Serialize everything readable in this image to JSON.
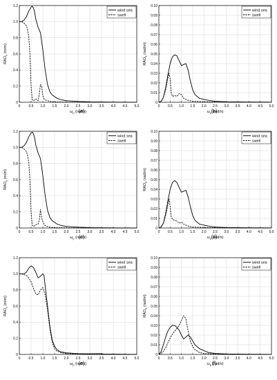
{
  "chart_data": [
    {
      "type": "line",
      "caption": "(a)",
      "xlabel": "ω",
      "xlabel_sub": "p",
      "xlabel_unit": " (rad/s)",
      "ylabel": "RAO",
      "ylabel_sub": "x",
      "ylabel_unit": " (m/m)",
      "xlim": [
        0,
        5
      ],
      "ylim": [
        0,
        1.2
      ],
      "xticks": [
        "0",
        "0.5",
        "1.0",
        "1.5",
        "2.0",
        "2.5",
        "3.0",
        "3.5",
        "4.0",
        "4.5",
        "5.0"
      ],
      "yticks": [
        "0",
        "0.2",
        "0.4",
        "0.6",
        "0.8",
        "1.0",
        "1.2"
      ],
      "grid": true,
      "legend": "top-right",
      "series": [
        {
          "name": "wind sea",
          "style": "solid",
          "x": [
            0,
            0.1,
            0.2,
            0.3,
            0.4,
            0.5,
            0.55,
            0.6,
            0.65,
            0.7,
            0.8,
            0.9,
            1.0,
            1.1,
            1.2,
            1.3,
            1.4,
            1.5,
            1.6,
            1.8,
            2.0,
            2.5,
            3.0,
            4.0,
            5.0
          ],
          "y": [
            1.0,
            1.0,
            1.02,
            1.06,
            1.13,
            1.18,
            1.19,
            1.17,
            1.12,
            1.03,
            0.93,
            0.86,
            0.65,
            0.4,
            0.22,
            0.13,
            0.09,
            0.07,
            0.05,
            0.03,
            0.02,
            0.01,
            0.005,
            0.002,
            0.001
          ]
        },
        {
          "name": "swell",
          "style": "dashed",
          "x": [
            0,
            0.1,
            0.2,
            0.3,
            0.35,
            0.4,
            0.45,
            0.5,
            0.55,
            0.6,
            0.7,
            0.8,
            0.85,
            0.9,
            0.95,
            1.0,
            1.05,
            1.1,
            1.2,
            1.3,
            1.5,
            2.0,
            3.0,
            5.0
          ],
          "y": [
            1.0,
            1.0,
            0.98,
            0.95,
            0.9,
            0.82,
            0.6,
            0.2,
            0.03,
            0.02,
            0.04,
            0.02,
            0.1,
            0.22,
            0.2,
            0.08,
            0.04,
            0.03,
            0.02,
            0.01,
            0.005,
            0.002,
            0.001,
            0.0
          ]
        }
      ]
    },
    {
      "type": "line",
      "caption": "(b)",
      "xlabel": "ω",
      "xlabel_sub": "p",
      "xlabel_unit": " (rad/s)",
      "ylabel": "RAO",
      "ylabel_sub": "θ",
      "ylabel_unit": " (rad/m)",
      "xlim": [
        0,
        5
      ],
      "ylim": [
        0,
        0.1
      ],
      "xticks": [
        "0",
        "0.5",
        "1.0",
        "1.5",
        "2.0",
        "2.5",
        "3.0",
        "3.5",
        "4.0",
        "4.5",
        "5.0"
      ],
      "yticks": [
        "0",
        "0.01",
        "0.02",
        "0.03",
        "0.04",
        "0.05",
        "0.06",
        "0.07",
        "0.08",
        "0.09",
        "0.10"
      ],
      "grid": true,
      "legend": "top-right",
      "series": [
        {
          "name": "wind sea",
          "style": "solid",
          "x": [
            0,
            0.1,
            0.2,
            0.3,
            0.4,
            0.5,
            0.6,
            0.7,
            0.8,
            0.9,
            1.0,
            1.1,
            1.2,
            1.3,
            1.4,
            1.5,
            1.6,
            1.8,
            2.0,
            2.2,
            2.5,
            3.0,
            4.0,
            5.0
          ],
          "y": [
            0,
            0.001,
            0.005,
            0.015,
            0.028,
            0.04,
            0.047,
            0.049,
            0.048,
            0.043,
            0.038,
            0.039,
            0.04,
            0.033,
            0.022,
            0.013,
            0.008,
            0.004,
            0.003,
            0.002,
            0.001,
            0.0005,
            0.0002,
            0.0001
          ]
        },
        {
          "name": "swell",
          "style": "dashed",
          "x": [
            0,
            0.1,
            0.2,
            0.3,
            0.4,
            0.45,
            0.5,
            0.55,
            0.6,
            0.7,
            0.8,
            0.9,
            1.0,
            1.1,
            1.2,
            1.3,
            1.5,
            2.0,
            3.0,
            5.0
          ],
          "y": [
            0,
            0.001,
            0.005,
            0.013,
            0.025,
            0.03,
            0.024,
            0.01,
            0.006,
            0.007,
            0.006,
            0.009,
            0.008,
            0.004,
            0.003,
            0.002,
            0.001,
            0.0005,
            0.0002,
            0.0001
          ]
        }
      ]
    },
    {
      "type": "line",
      "caption": "(c)",
      "xlabel": "ω",
      "xlabel_sub": "p",
      "xlabel_unit": " (rad/s)",
      "ylabel": "RAO",
      "ylabel_sub": "x",
      "ylabel_unit": " (m/m)",
      "xlim": [
        0,
        5
      ],
      "ylim": [
        0,
        1.2
      ],
      "xticks": [
        "0",
        "0.5",
        "1.0",
        "1.5",
        "2.0",
        "2.5",
        "3.0",
        "3.5",
        "4.0",
        "4.5",
        "5.0"
      ],
      "yticks": [
        "0",
        "0.2",
        "0.4",
        "0.6",
        "0.8",
        "1.0",
        "1.2"
      ],
      "grid": true,
      "legend": "top-right",
      "series": [
        {
          "name": "wind sea",
          "style": "solid",
          "x": [
            0,
            0.1,
            0.2,
            0.3,
            0.4,
            0.5,
            0.55,
            0.6,
            0.65,
            0.7,
            0.8,
            0.9,
            1.0,
            1.1,
            1.2,
            1.3,
            1.4,
            1.5,
            1.6,
            1.8,
            2.0,
            2.5,
            3.0,
            4.0,
            5.0
          ],
          "y": [
            1.0,
            1.0,
            1.02,
            1.06,
            1.13,
            1.18,
            1.19,
            1.17,
            1.12,
            1.03,
            0.93,
            0.86,
            0.65,
            0.4,
            0.22,
            0.13,
            0.09,
            0.07,
            0.05,
            0.03,
            0.02,
            0.01,
            0.005,
            0.002,
            0.001
          ]
        },
        {
          "name": "swell",
          "style": "dashed",
          "x": [
            0,
            0.1,
            0.2,
            0.3,
            0.35,
            0.4,
            0.45,
            0.5,
            0.55,
            0.6,
            0.7,
            0.8,
            0.85,
            0.9,
            0.95,
            1.0,
            1.05,
            1.1,
            1.2,
            1.3,
            1.5,
            2.0,
            3.0,
            5.0
          ],
          "y": [
            1.0,
            1.0,
            0.98,
            0.95,
            0.9,
            0.82,
            0.6,
            0.2,
            0.03,
            0.02,
            0.04,
            0.05,
            0.1,
            0.23,
            0.12,
            0.08,
            0.05,
            0.03,
            0.02,
            0.01,
            0.005,
            0.002,
            0.001,
            0.0
          ]
        }
      ]
    },
    {
      "type": "line",
      "caption": "(d)",
      "xlabel": "ω",
      "xlabel_sub": "p",
      "xlabel_unit": " (rad/s)",
      "ylabel": "RAO",
      "ylabel_sub": "θ",
      "ylabel_unit": " (rad/m)",
      "xlim": [
        0,
        5
      ],
      "ylim": [
        0,
        0.1
      ],
      "xticks": [
        "0",
        "0.5",
        "1.0",
        "1.5",
        "2.0",
        "2.5",
        "3.0",
        "3.5",
        "4.0",
        "4.5",
        "5.0"
      ],
      "yticks": [
        "0",
        "0.01",
        "0.02",
        "0.03",
        "0.04",
        "0.05",
        "0.06",
        "0.07",
        "0.08",
        "0.09",
        "0.10"
      ],
      "grid": true,
      "legend": "top-right",
      "series": [
        {
          "name": "wind sea",
          "style": "solid",
          "x": [
            0,
            0.1,
            0.2,
            0.3,
            0.4,
            0.5,
            0.6,
            0.7,
            0.8,
            0.9,
            1.0,
            1.1,
            1.2,
            1.3,
            1.4,
            1.5,
            1.6,
            1.8,
            2.0,
            2.2,
            2.5,
            3.0,
            4.0,
            5.0
          ],
          "y": [
            0,
            0.001,
            0.005,
            0.015,
            0.028,
            0.04,
            0.047,
            0.049,
            0.047,
            0.042,
            0.037,
            0.038,
            0.039,
            0.032,
            0.022,
            0.013,
            0.008,
            0.004,
            0.003,
            0.002,
            0.001,
            0.0005,
            0.0002,
            0.0001
          ]
        },
        {
          "name": "swell",
          "style": "dashed",
          "x": [
            0,
            0.1,
            0.2,
            0.3,
            0.4,
            0.45,
            0.5,
            0.55,
            0.6,
            0.7,
            0.8,
            0.9,
            1.0,
            1.1,
            1.2,
            1.3,
            1.5,
            2.0,
            3.0,
            5.0
          ],
          "y": [
            0,
            0.001,
            0.005,
            0.013,
            0.024,
            0.03,
            0.022,
            0.012,
            0.009,
            0.008,
            0.007,
            0.005,
            0.006,
            0.004,
            0.003,
            0.002,
            0.001,
            0.0005,
            0.0002,
            0.0001
          ]
        }
      ]
    },
    {
      "type": "line",
      "caption": "(e)",
      "xlabel": "ω",
      "xlabel_sub": "p",
      "xlabel_unit": " (rad/s)",
      "ylabel": "RAO",
      "ylabel_sub": "x",
      "ylabel_unit": " (m/m)",
      "xlim": [
        0,
        5
      ],
      "ylim": [
        0,
        1.2
      ],
      "xticks": [
        "0",
        "0.5",
        "1.0",
        "1.5",
        "2.0",
        "2.5",
        "3.0",
        "3.5",
        "4.0",
        "4.5",
        "5.0"
      ],
      "yticks": [
        "0",
        "0.2",
        "0.4",
        "0.6",
        "0.8",
        "1.0",
        "1.2"
      ],
      "grid": true,
      "legend": "top-right",
      "series": [
        {
          "name": "wind sea",
          "style": "solid",
          "x": [
            0,
            0.1,
            0.2,
            0.3,
            0.4,
            0.5,
            0.6,
            0.7,
            0.8,
            0.9,
            1.0,
            1.05,
            1.1,
            1.2,
            1.3,
            1.4,
            1.5,
            1.6,
            1.7,
            1.8,
            2.0,
            2.5,
            3.0,
            3.5,
            3.6,
            4.0,
            5.0
          ],
          "y": [
            1.0,
            1.0,
            1.0,
            1.02,
            1.07,
            1.1,
            1.08,
            1.02,
            0.95,
            0.97,
            1.0,
            0.98,
            0.85,
            0.6,
            0.35,
            0.18,
            0.1,
            0.06,
            0.04,
            0.03,
            0.02,
            0.01,
            0.008,
            0.01,
            0.005,
            0.003,
            0.001
          ]
        },
        {
          "name": "swell",
          "style": "dashed",
          "x": [
            0,
            0.1,
            0.2,
            0.3,
            0.4,
            0.5,
            0.6,
            0.7,
            0.8,
            0.9,
            1.0,
            1.1,
            1.2,
            1.3,
            1.4,
            1.5,
            1.6,
            1.8,
            2.0,
            2.5,
            3.0,
            4.0,
            5.0
          ],
          "y": [
            1.0,
            1.0,
            0.99,
            0.98,
            0.95,
            0.9,
            0.82,
            0.75,
            0.74,
            0.8,
            0.83,
            0.74,
            0.55,
            0.32,
            0.15,
            0.07,
            0.04,
            0.02,
            0.01,
            0.005,
            0.002,
            0.001,
            0.0
          ]
        }
      ]
    },
    {
      "type": "line",
      "caption": "(f)",
      "xlabel": "ω",
      "xlabel_sub": "p",
      "xlabel_unit": " (rad/s)",
      "ylabel": "RAO",
      "ylabel_sub": "θ",
      "ylabel_unit": " (rad/m)",
      "xlim": [
        0,
        5
      ],
      "ylim": [
        0,
        0.1
      ],
      "xticks": [
        "0",
        "0.5",
        "1.0",
        "1.5",
        "2.0",
        "2.5",
        "3.0",
        "3.5",
        "4.0",
        "4.5",
        "5.0"
      ],
      "yticks": [
        "0",
        "0.01",
        "0.02",
        "0.03",
        "0.04",
        "0.05",
        "0.06",
        "0.07",
        "0.08",
        "0.09",
        "0.10"
      ],
      "grid": true,
      "legend": "top-right",
      "series": [
        {
          "name": "wind sea",
          "style": "solid",
          "x": [
            0,
            0.1,
            0.2,
            0.3,
            0.4,
            0.5,
            0.6,
            0.7,
            0.8,
            0.9,
            1.0,
            1.1,
            1.2,
            1.3,
            1.4,
            1.5,
            1.6,
            1.8,
            2.0,
            2.2,
            2.5,
            3.0,
            4.0,
            5.0
          ],
          "y": [
            0,
            0.003,
            0.01,
            0.018,
            0.024,
            0.028,
            0.03,
            0.03,
            0.028,
            0.025,
            0.02,
            0.016,
            0.018,
            0.02,
            0.018,
            0.014,
            0.01,
            0.006,
            0.004,
            0.002,
            0.001,
            0.0005,
            0.0002,
            0.0001
          ]
        },
        {
          "name": "swell",
          "style": "dashed",
          "x": [
            0,
            0.1,
            0.2,
            0.3,
            0.4,
            0.5,
            0.6,
            0.7,
            0.8,
            0.9,
            1.0,
            1.1,
            1.2,
            1.25,
            1.3,
            1.4,
            1.5,
            1.6,
            1.8,
            2.0,
            2.5,
            3.0,
            4.0,
            5.0
          ],
          "y": [
            0,
            0.001,
            0.003,
            0.007,
            0.012,
            0.017,
            0.021,
            0.024,
            0.027,
            0.03,
            0.035,
            0.04,
            0.037,
            0.03,
            0.024,
            0.014,
            0.008,
            0.005,
            0.002,
            0.001,
            0.0005,
            0.0002,
            0.0001,
            0.0
          ]
        }
      ]
    }
  ]
}
